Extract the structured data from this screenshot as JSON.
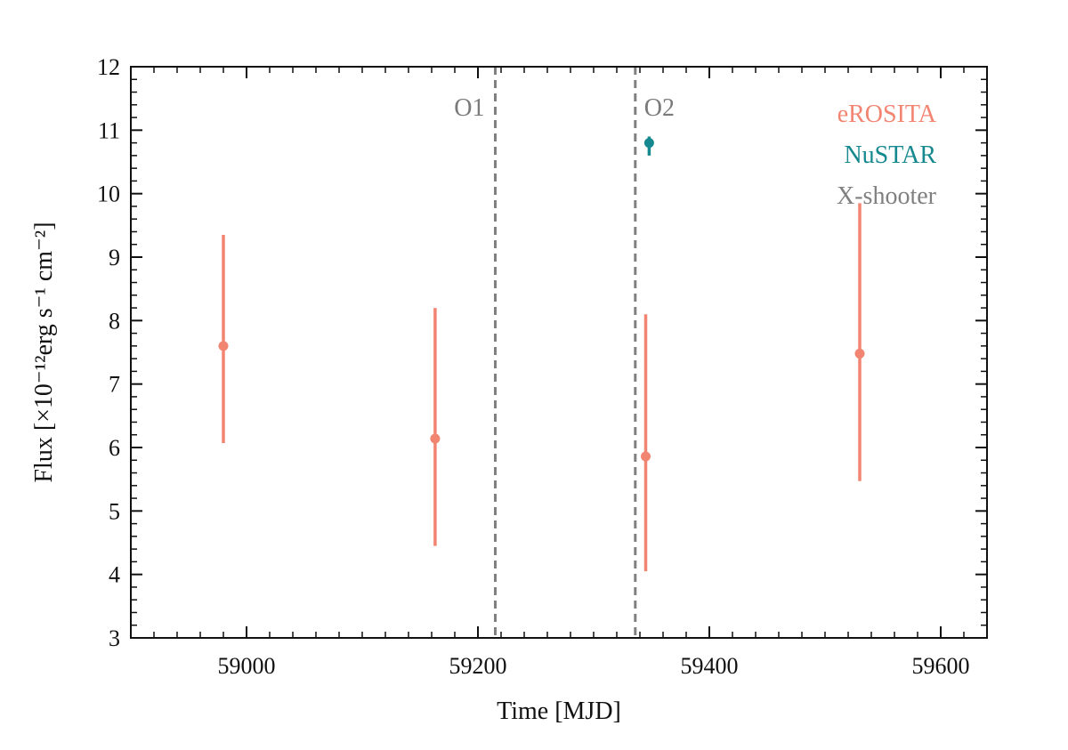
{
  "chart_data": {
    "type": "scatter",
    "xlabel": "Time [MJD]",
    "ylabel": "Flux [×10⁻¹²erg s⁻¹ cm⁻²]",
    "xlim": [
      58900,
      59640
    ],
    "ylim": [
      3,
      12
    ],
    "x_ticks": [
      59000,
      59200,
      59400,
      59600
    ],
    "x_minor_step": 20,
    "y_ticks": [
      3,
      4,
      5,
      6,
      7,
      8,
      9,
      10,
      11,
      12
    ],
    "y_minor_step": 0.2,
    "legend_position": "top-right",
    "grid": false,
    "series": [
      {
        "name": "eROSITA",
        "color": "#f28572",
        "points": [
          {
            "x": 58980,
            "y": 7.6,
            "ylo": 6.07,
            "yhi": 9.35
          },
          {
            "x": 59163,
            "y": 6.14,
            "ylo": 4.45,
            "yhi": 8.2
          },
          {
            "x": 59345,
            "y": 5.86,
            "ylo": 4.05,
            "yhi": 8.1
          },
          {
            "x": 59530,
            "y": 7.48,
            "ylo": 5.47,
            "yhi": 9.85
          }
        ]
      },
      {
        "name": "NuSTAR",
        "color": "#15898f",
        "points": [
          {
            "x": 59348,
            "y": 10.8,
            "ylo": 10.6,
            "yhi": 10.9
          }
        ]
      },
      {
        "name": "X-shooter",
        "color": "#808080",
        "points": []
      }
    ],
    "vertical_lines": [
      {
        "x": 59215,
        "label": "O1",
        "color": "#808080"
      },
      {
        "x": 59336,
        "label": "O2",
        "color": "#808080"
      }
    ]
  }
}
